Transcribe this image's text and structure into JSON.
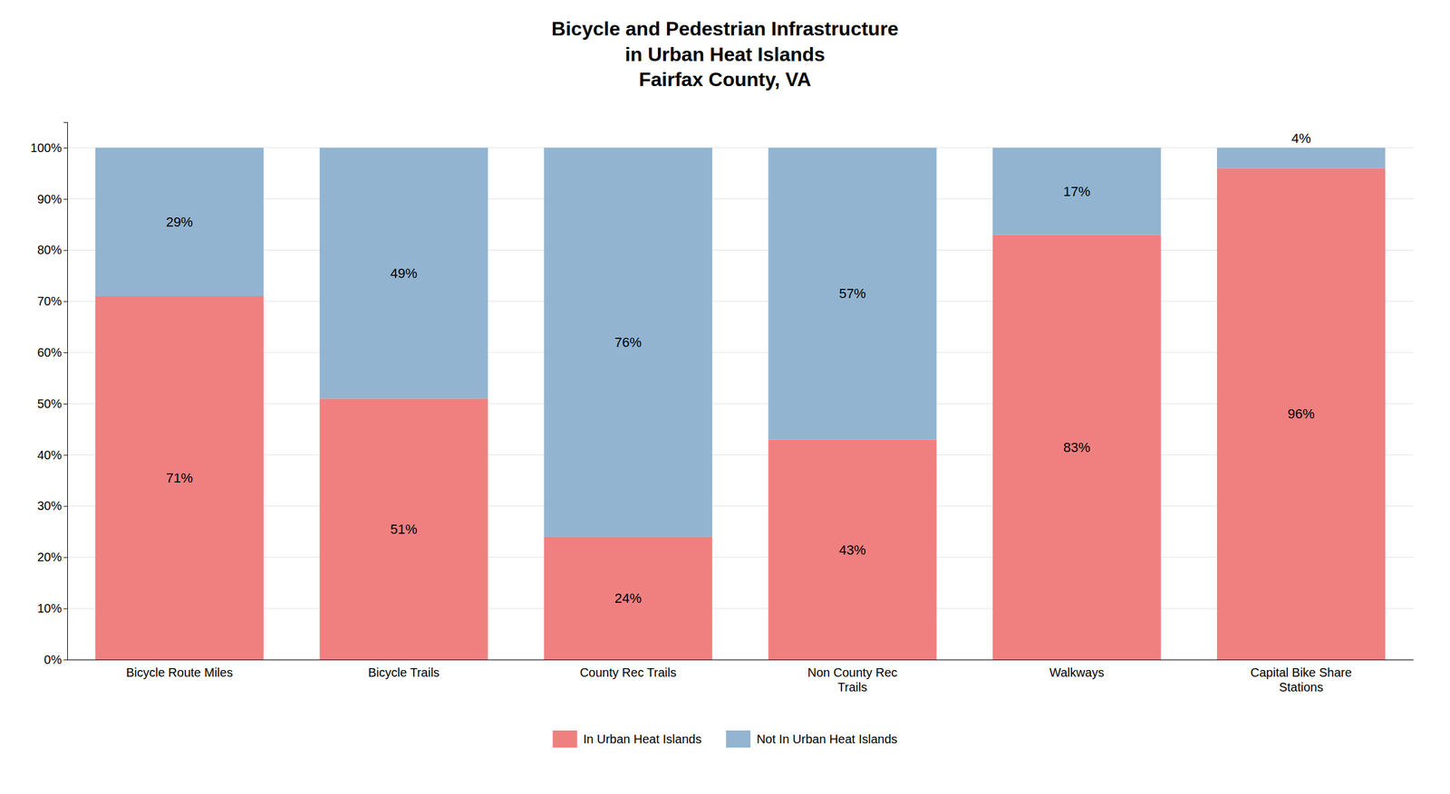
{
  "chart_data": {
    "type": "bar",
    "title": "Bicycle and Pedestrian Infrastructure\nin Urban Heat Islands\nFairfax County, VA",
    "categories": [
      "Bicycle Route Miles",
      "Bicycle Trails",
      "County Rec Trails",
      "Non County Rec\nTrails",
      "Walkways",
      "Capital Bike Share\nStations"
    ],
    "series": [
      {
        "name": "In Urban Heat Islands",
        "color": "#F08080",
        "values": [
          71,
          51,
          24,
          43,
          83,
          96
        ],
        "value_labels": [
          "71%",
          "51%",
          "24%",
          "43%",
          "83%",
          "96%"
        ]
      },
      {
        "name": "Not In Urban Heat Islands",
        "color": "#92B4D0",
        "values": [
          29,
          49,
          76,
          57,
          17,
          4
        ],
        "value_labels": [
          "29%",
          "49%",
          "76%",
          "57%",
          "17%",
          "4%"
        ]
      }
    ],
    "stacked": true,
    "data_labels": true,
    "ylim": [
      0,
      105
    ],
    "yticks": [
      {
        "value": 0,
        "label": "0%"
      },
      {
        "value": 10,
        "label": "10%"
      },
      {
        "value": 20,
        "label": "20%"
      },
      {
        "value": 30,
        "label": "30%"
      },
      {
        "value": 40,
        "label": "40%"
      },
      {
        "value": 50,
        "label": "50%"
      },
      {
        "value": 60,
        "label": "60%"
      },
      {
        "value": 70,
        "label": "70%"
      },
      {
        "value": 80,
        "label": "80%"
      },
      {
        "value": 90,
        "label": "90%"
      },
      {
        "value": 100,
        "label": "100%"
      }
    ],
    "grid": true,
    "legend": "bottom"
  }
}
